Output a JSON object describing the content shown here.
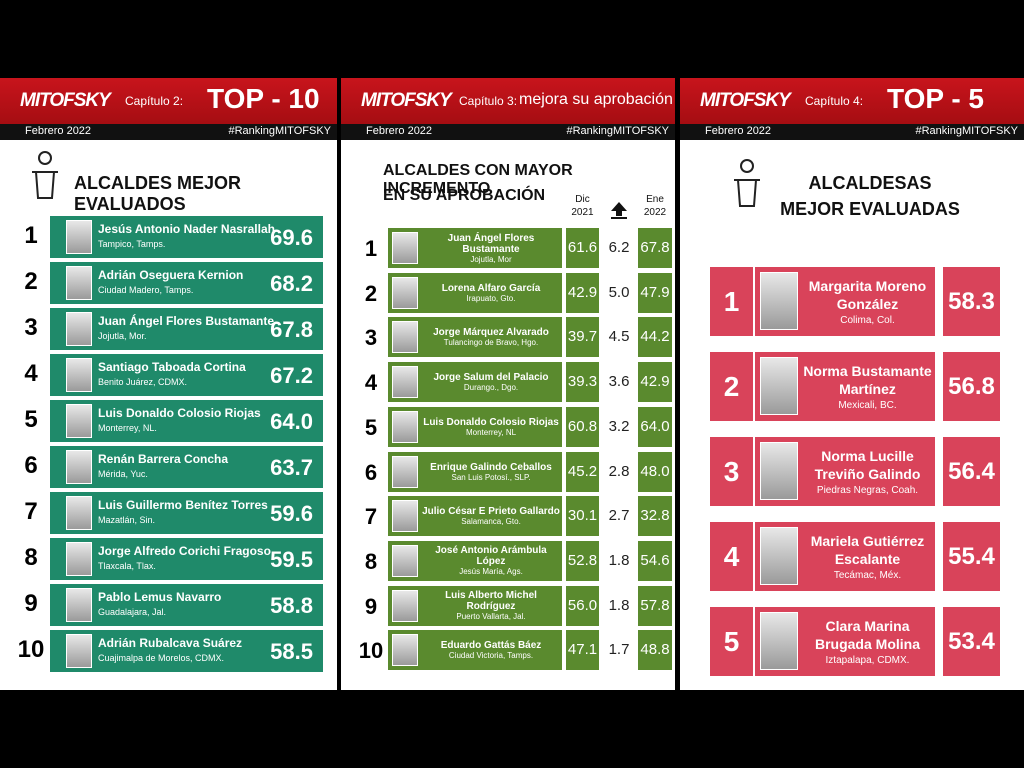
{
  "panels": [
    {
      "logo": "MITOFSKY",
      "chapter": "Capítulo 2:",
      "headline": "TOP - 10",
      "date": "Febrero 2022",
      "hashtag": "#RankingMITOFSKY",
      "title": [
        "ALCALDES MEJOR EVALUADOS"
      ],
      "rows": [
        {
          "rank": 1,
          "name": "Jesús Antonio Nader Nasrallah",
          "place": "Tampico, Tamps.",
          "score": "69.6"
        },
        {
          "rank": 2,
          "name": "Adrián Oseguera Kernion",
          "place": "Ciudad Madero, Tamps.",
          "score": "68.2"
        },
        {
          "rank": 3,
          "name": "Juan Ángel Flores Bustamante",
          "place": "Jojutla, Mor.",
          "score": "67.8"
        },
        {
          "rank": 4,
          "name": "Santiago Taboada Cortina",
          "place": "Benito Juárez, CDMX.",
          "score": "67.2"
        },
        {
          "rank": 5,
          "name": "Luis Donaldo Colosio Riojas",
          "place": "Monterrey, NL.",
          "score": "64.0"
        },
        {
          "rank": 6,
          "name": "Renán Barrera Concha",
          "place": "Mérida, Yuc.",
          "score": "63.7"
        },
        {
          "rank": 7,
          "name": "Luis Guillermo Benítez Torres",
          "place": "Mazatlán, Sin.",
          "score": "59.6"
        },
        {
          "rank": 8,
          "name": "Jorge Alfredo Corichi Fragoso",
          "place": "Tlaxcala, Tlax.",
          "score": "59.5"
        },
        {
          "rank": 9,
          "name": "Pablo Lemus Navarro",
          "place": "Guadalajara, Jal.",
          "score": "58.8"
        },
        {
          "rank": 10,
          "name": "Adrián Rubalcava Suárez",
          "place": "Cuajimalpa de Morelos, CDMX.",
          "score": "58.5"
        }
      ]
    },
    {
      "logo": "MITOFSKY",
      "chapter": "Capítulo 3:",
      "headline": "mejora su aprobación",
      "date": "Febrero 2022",
      "hashtag": "#RankingMITOFSKY",
      "title": [
        "ALCALDES CON MAYOR INCREMENTO",
        "EN SU APROBACIÓN"
      ],
      "columns": {
        "dic": [
          "Dic",
          "2021"
        ],
        "ene": [
          "Ene",
          "2022"
        ]
      },
      "rows": [
        {
          "rank": 1,
          "name": "Juan Ángel Flores Bustamante",
          "place": "Jojutla, Mor",
          "dic": "61.6",
          "change": "6.2",
          "ene": "67.8"
        },
        {
          "rank": 2,
          "name": "Lorena Alfaro García",
          "place": "Irapuato, Gto.",
          "dic": "42.9",
          "change": "5.0",
          "ene": "47.9"
        },
        {
          "rank": 3,
          "name": "Jorge Márquez Alvarado",
          "place": "Tulancingo de Bravo, Hgo.",
          "dic": "39.7",
          "change": "4.5",
          "ene": "44.2"
        },
        {
          "rank": 4,
          "name": "Jorge Salum del Palacio",
          "place": "Durango., Dgo.",
          "dic": "39.3",
          "change": "3.6",
          "ene": "42.9"
        },
        {
          "rank": 5,
          "name": "Luis Donaldo Colosio Riojas",
          "place": "Monterrey, NL",
          "dic": "60.8",
          "change": "3.2",
          "ene": "64.0"
        },
        {
          "rank": 6,
          "name": "Enrique Galindo Ceballos",
          "place": "San Luis Potosí., SLP.",
          "dic": "45.2",
          "change": "2.8",
          "ene": "48.0"
        },
        {
          "rank": 7,
          "name": "Julio César E Prieto Gallardo",
          "place": "Salamanca, Gto.",
          "dic": "30.1",
          "change": "2.7",
          "ene": "32.8"
        },
        {
          "rank": 8,
          "name": "José Antonio Arámbula López",
          "place": "Jesús María, Ags.",
          "dic": "52.8",
          "change": "1.8",
          "ene": "54.6"
        },
        {
          "rank": 9,
          "name": "Luis Alberto Michel Rodríguez",
          "place": "Puerto Vallarta, Jal.",
          "dic": "56.0",
          "change": "1.8",
          "ene": "57.8"
        },
        {
          "rank": 10,
          "name": "Eduardo Gattás Báez",
          "place": "Ciudad Victoria, Tamps.",
          "dic": "47.1",
          "change": "1.7",
          "ene": "48.8"
        }
      ]
    },
    {
      "logo": "MITOFSKY",
      "chapter": "Capítulo 4:",
      "headline": "TOP - 5",
      "date": "Febrero 2022",
      "hashtag": "#RankingMITOFSKY",
      "title": [
        "ALCALDESAS",
        "MEJOR EVALUADAS"
      ],
      "rows": [
        {
          "rank": 1,
          "name": "Margarita Moreno González",
          "place": "Colima, Col.",
          "score": "58.3"
        },
        {
          "rank": 2,
          "name": "Norma Bustamante Martínez",
          "place": "Mexicali, BC.",
          "score": "56.8"
        },
        {
          "rank": 3,
          "name": "Norma Lucille Treviño Galindo",
          "place": "Piedras Negras, Coah.",
          "score": "56.4"
        },
        {
          "rank": 4,
          "name": "Mariela Gutiérrez Escalante",
          "place": "Tecámac, Méx.",
          "score": "55.4"
        },
        {
          "rank": 5,
          "name": "Clara Marina Brugada Molina",
          "place": "Iztapalapa, CDMX.",
          "score": "53.4"
        }
      ]
    }
  ]
}
